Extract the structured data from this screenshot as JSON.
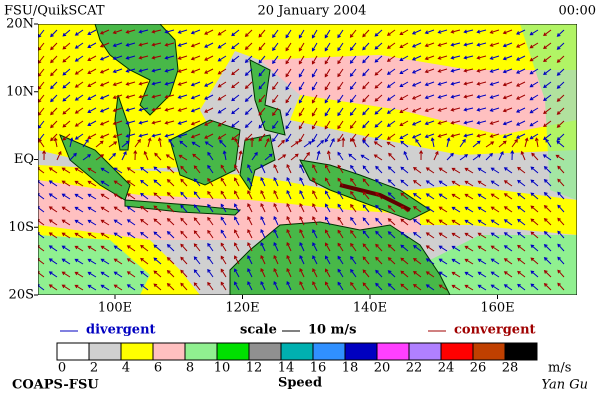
{
  "header": {
    "left": "FSU/QuikSCAT",
    "date": "20 January 2004",
    "time": "00:00"
  },
  "map": {
    "lat_labels": [
      "20N",
      "10N",
      "EQ",
      "10S",
      "20S"
    ],
    "lon_labels": [
      "100E",
      "120E",
      "140E",
      "160E"
    ]
  },
  "legend": {
    "divergent": "divergent",
    "scale": "scale",
    "scale_value": "10 m/s",
    "convergent": "convergent"
  },
  "colorbar": {
    "ticks": [
      0,
      2,
      4,
      6,
      8,
      10,
      12,
      14,
      16,
      18,
      20,
      22,
      24,
      26,
      28
    ],
    "unit": "m/s",
    "title": "Speed",
    "colors": [
      "#ffffff",
      "#d0d0d0",
      "#ffff00",
      "#ffc0c0",
      "#90f090",
      "#00e000",
      "#909090",
      "#00b0b0",
      "#3090ff",
      "#0000c0",
      "#ff40ff",
      "#b080ff",
      "#ff0000",
      "#c04000",
      "#000000"
    ]
  },
  "footer": {
    "left": "COAPS-FSU",
    "right": "Yan Gu"
  }
}
